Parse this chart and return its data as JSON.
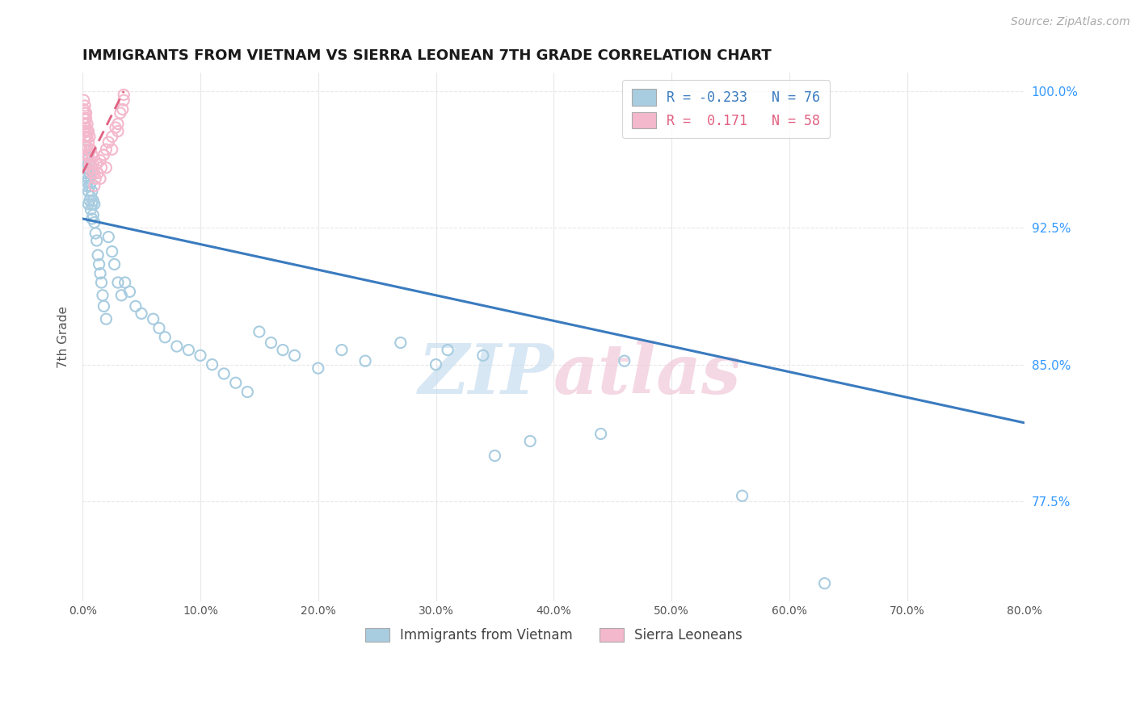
{
  "title": "IMMIGRANTS FROM VIETNAM VS SIERRA LEONEAN 7TH GRADE CORRELATION CHART",
  "source": "Source: ZipAtlas.com",
  "ylabel": "7th Grade",
  "legend_label_vietnam": "Immigrants from Vietnam",
  "legend_label_sierra": "Sierra Leoneans",
  "vietnam_color": "#a8cce0",
  "sierra_color": "#f4b8cc",
  "vietnam_trend_color": "#3a7bbf",
  "sierra_trend_color": "#e06080",
  "watermark_zip": "ZIP",
  "watermark_atlas": "atlas",
  "background_color": "#ffffff",
  "grid_color": "#e8e8e8",
  "xlim": [
    0.0,
    0.8
  ],
  "ylim": [
    0.72,
    1.01
  ],
  "ytick_values": [
    0.775,
    0.85,
    0.925,
    1.0
  ],
  "ytick_labels": [
    "77.5%",
    "85.0%",
    "92.5%",
    "100.0%"
  ],
  "xtick_values": [
    0.0,
    0.1,
    0.2,
    0.3,
    0.4,
    0.5,
    0.6,
    0.7,
    0.8
  ],
  "xtick_labels": [
    "0.0%",
    "10.0%",
    "20.0%",
    "30.0%",
    "40.0%",
    "50.0%",
    "60.0%",
    "70.0%",
    "80.0%"
  ],
  "vietnam_trend_x": [
    0.0,
    0.8
  ],
  "vietnam_trend_y": [
    0.93,
    0.818
  ],
  "sierra_trend_x": [
    0.0,
    0.035
  ],
  "sierra_trend_y": [
    0.955,
    1.0
  ],
  "vietnam_x": [
    0.001,
    0.001,
    0.001,
    0.002,
    0.002,
    0.002,
    0.002,
    0.003,
    0.003,
    0.003,
    0.003,
    0.004,
    0.004,
    0.004,
    0.005,
    0.005,
    0.005,
    0.005,
    0.006,
    0.006,
    0.006,
    0.007,
    0.007,
    0.007,
    0.008,
    0.008,
    0.008,
    0.009,
    0.009,
    0.01,
    0.01,
    0.011,
    0.012,
    0.013,
    0.014,
    0.015,
    0.016,
    0.017,
    0.018,
    0.02,
    0.022,
    0.025,
    0.027,
    0.03,
    0.033,
    0.036,
    0.04,
    0.045,
    0.05,
    0.06,
    0.065,
    0.07,
    0.08,
    0.09,
    0.1,
    0.11,
    0.12,
    0.13,
    0.14,
    0.15,
    0.16,
    0.17,
    0.18,
    0.2,
    0.22,
    0.24,
    0.27,
    0.3,
    0.31,
    0.34,
    0.35,
    0.38,
    0.44,
    0.46,
    0.56,
    0.63
  ],
  "vietnam_y": [
    0.96,
    0.955,
    0.952,
    0.975,
    0.968,
    0.965,
    0.958,
    0.97,
    0.962,
    0.955,
    0.948,
    0.965,
    0.958,
    0.95,
    0.96,
    0.952,
    0.945,
    0.938,
    0.955,
    0.948,
    0.94,
    0.95,
    0.942,
    0.935,
    0.945,
    0.938,
    0.93,
    0.94,
    0.932,
    0.938,
    0.928,
    0.922,
    0.918,
    0.91,
    0.905,
    0.9,
    0.895,
    0.888,
    0.882,
    0.875,
    0.92,
    0.912,
    0.905,
    0.895,
    0.888,
    0.895,
    0.89,
    0.882,
    0.878,
    0.875,
    0.87,
    0.865,
    0.86,
    0.858,
    0.855,
    0.85,
    0.845,
    0.84,
    0.835,
    0.868,
    0.862,
    0.858,
    0.855,
    0.848,
    0.858,
    0.852,
    0.862,
    0.85,
    0.858,
    0.855,
    0.8,
    0.808,
    0.812,
    0.852,
    0.778,
    0.73
  ],
  "sierra_x": [
    0.001,
    0.001,
    0.001,
    0.001,
    0.001,
    0.002,
    0.002,
    0.002,
    0.002,
    0.002,
    0.002,
    0.002,
    0.003,
    0.003,
    0.003,
    0.003,
    0.003,
    0.003,
    0.003,
    0.004,
    0.004,
    0.004,
    0.004,
    0.005,
    0.005,
    0.005,
    0.006,
    0.006,
    0.006,
    0.007,
    0.007,
    0.008,
    0.008,
    0.009,
    0.01,
    0.011,
    0.012,
    0.013,
    0.015,
    0.016,
    0.018,
    0.02,
    0.022,
    0.025,
    0.028,
    0.03,
    0.032,
    0.034,
    0.035,
    0.035,
    0.02,
    0.015,
    0.01,
    0.008,
    0.025,
    0.03,
    0.012,
    0.018
  ],
  "sierra_y": [
    0.995,
    0.99,
    0.985,
    0.982,
    0.978,
    0.992,
    0.988,
    0.985,
    0.982,
    0.978,
    0.975,
    0.97,
    0.988,
    0.985,
    0.98,
    0.975,
    0.97,
    0.965,
    0.96,
    0.982,
    0.978,
    0.975,
    0.968,
    0.978,
    0.972,
    0.965,
    0.975,
    0.968,
    0.96,
    0.968,
    0.962,
    0.965,
    0.958,
    0.96,
    0.955,
    0.952,
    0.96,
    0.955,
    0.962,
    0.958,
    0.965,
    0.968,
    0.972,
    0.975,
    0.98,
    0.982,
    0.988,
    0.99,
    0.995,
    0.998,
    0.958,
    0.952,
    0.948,
    0.955,
    0.968,
    0.978,
    0.96,
    0.965
  ]
}
